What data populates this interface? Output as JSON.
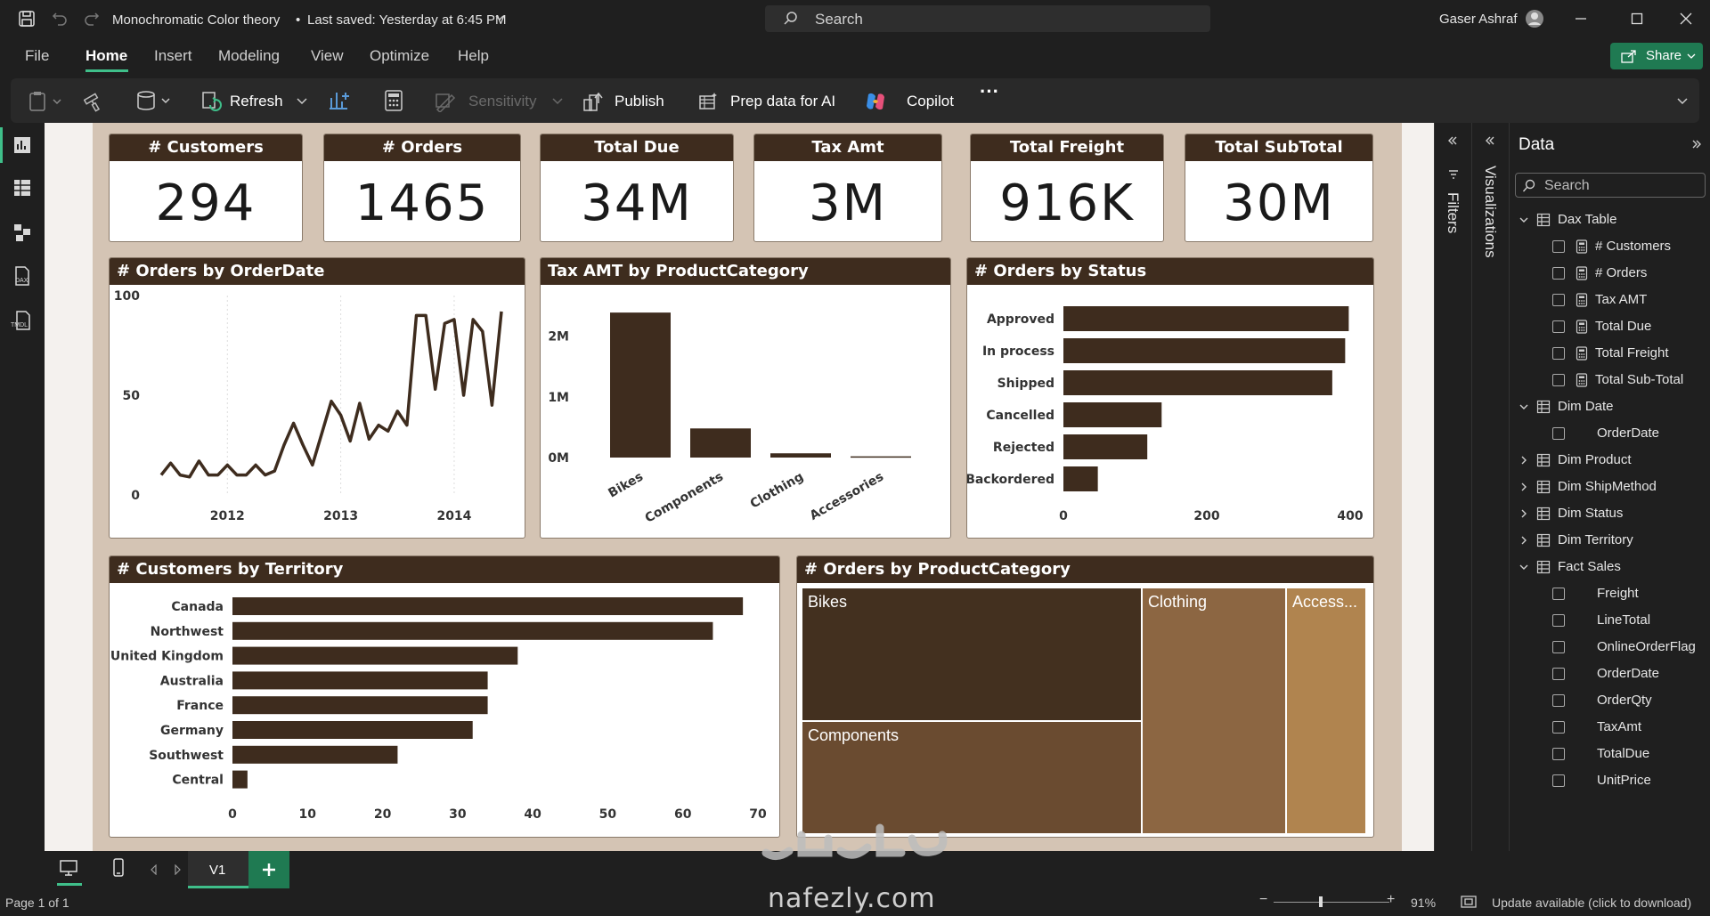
{
  "window": {
    "doc_title": "Monochromatic Color theory",
    "saved": "Last saved: Yesterday at 6:45 PM",
    "search": "Search",
    "user": "Gaser Ashraf"
  },
  "menu": [
    "File",
    "Home",
    "Insert",
    "Modeling",
    "View",
    "Optimize",
    "Help"
  ],
  "share": "Share",
  "ribbon": {
    "refresh": "Refresh",
    "sensitivity": "Sensitivity",
    "publish": "Publish",
    "prep": "Prep data for AI",
    "copilot": "Copilot",
    "more": "···"
  },
  "kpis": [
    {
      "title": "# Customers",
      "value": "294"
    },
    {
      "title": "# Orders",
      "value": "1465"
    },
    {
      "title": "Total Due",
      "value": "34M"
    },
    {
      "title": "Tax Amt",
      "value": "3M"
    },
    {
      "title": "Total Freight",
      "value": "916K"
    },
    {
      "title": "Total SubTotal",
      "value": "30M"
    }
  ],
  "colors": {
    "dark": "#3e2c1e",
    "bar": "#3e2c1e",
    "tree_bikes": "#43301f",
    "tree_components": "#6a4b30",
    "tree_clothing": "#8c6642",
    "tree_access": "#b0844f",
    "card_bg": "#ffffff",
    "page_bg": "#d4c4b4",
    "accent": "#1f7a52"
  },
  "chart_data": [
    {
      "type": "line",
      "title": "# Orders by OrderDate",
      "ylim": [
        0,
        100
      ],
      "yticks": [
        "0",
        "50",
        "100"
      ],
      "xticks": [
        "2012",
        "2013",
        "2014"
      ],
      "x": [
        "2011-06",
        "2011-07",
        "2011-08",
        "2011-09",
        "2011-10",
        "2011-11",
        "2011-12",
        "2012-01",
        "2012-02",
        "2012-03",
        "2012-04",
        "2012-05",
        "2012-06",
        "2012-07",
        "2012-08",
        "2012-09",
        "2012-10",
        "2012-11",
        "2012-12",
        "2013-01",
        "2013-02",
        "2013-03",
        "2013-04",
        "2013-05",
        "2013-06",
        "2013-07",
        "2013-08",
        "2013-09",
        "2013-10",
        "2013-11",
        "2013-12",
        "2014-01",
        "2014-02",
        "2014-03",
        "2014-04",
        "2014-05",
        "2014-06"
      ],
      "values": [
        10,
        16,
        10,
        9,
        17,
        10,
        10,
        15,
        10,
        10,
        15,
        10,
        12,
        25,
        36,
        25,
        15,
        31,
        47,
        40,
        27,
        46,
        28,
        35,
        32,
        42,
        35,
        90,
        90,
        53,
        86,
        88,
        50,
        88,
        82,
        45,
        92
      ]
    },
    {
      "type": "bar",
      "title": "Tax AMT by ProductCategory",
      "categories": [
        "Bikes",
        "Components",
        "Clothing",
        "Accessories"
      ],
      "values": [
        2390000,
        480000,
        70000,
        20000
      ],
      "yticks": [
        "0M",
        "1M",
        "2M"
      ],
      "ylim": [
        0,
        2700000
      ]
    },
    {
      "type": "bar",
      "orientation": "horizontal",
      "title": "# Orders by Status",
      "categories": [
        "Approved",
        "In process",
        "Shipped",
        "Cancelled",
        "Rejected",
        "Backordered"
      ],
      "values": [
        398,
        393,
        375,
        137,
        117,
        48
      ],
      "xticks": [
        "0",
        "200",
        "400"
      ],
      "xlim": [
        0,
        400
      ]
    },
    {
      "type": "bar",
      "orientation": "horizontal",
      "title": "# Customers by Territory",
      "categories": [
        "Canada",
        "Northwest",
        "United Kingdom",
        "Australia",
        "France",
        "Germany",
        "Southwest",
        "Central"
      ],
      "values": [
        68,
        64,
        38,
        34,
        34,
        32,
        22,
        2
      ],
      "xticks": [
        "0",
        "10",
        "20",
        "30",
        "40",
        "50",
        "60",
        "70"
      ],
      "xlim": [
        0,
        70
      ]
    },
    {
      "type": "treemap",
      "title": "# Orders by ProductCategory",
      "categories": [
        "Bikes",
        "Components",
        "Clothing",
        "Access..."
      ]
    }
  ],
  "panes": {
    "filters": "Filters",
    "visualizations": "Visualizations",
    "data": "Data",
    "search": "Search"
  },
  "tree": [
    {
      "label": "Dax Table",
      "expanded": true,
      "children": [
        "# Customers",
        "# Orders",
        "Tax AMT",
        "Total Due",
        "Total Freight",
        "Total Sub-Total"
      ]
    },
    {
      "label": "Dim Date",
      "expanded": true,
      "children": [
        "OrderDate"
      ]
    },
    {
      "label": "Dim Product",
      "expanded": false,
      "children": []
    },
    {
      "label": "Dim ShipMethod",
      "expanded": false,
      "children": []
    },
    {
      "label": "Dim Status",
      "expanded": false,
      "children": []
    },
    {
      "label": "Dim Territory",
      "expanded": false,
      "children": []
    },
    {
      "label": "Fact Sales",
      "expanded": true,
      "children": [
        "Freight",
        "LineTotal",
        "OnlineOrderFlag",
        "OrderDate",
        "OrderQty",
        "TaxAmt",
        "TotalDue",
        "UnitPrice"
      ]
    }
  ],
  "pagetab": "V1",
  "status": {
    "page": "Page 1 of 1",
    "zoom": "91%",
    "update": "Update available (click to download)"
  },
  "watermark": {
    "site": "nafezly.com"
  }
}
